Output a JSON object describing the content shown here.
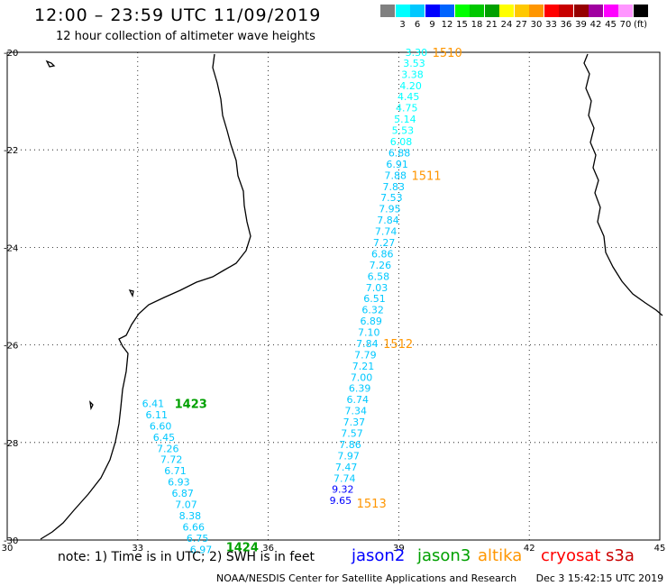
{
  "header": {
    "title": "12:00 – 23:59 UTC 11/09/2019",
    "subtitle": "12 hour collection of altimeter wave heights"
  },
  "color_scale": {
    "colors": [
      "#808080",
      "#00ffff",
      "#00c8ff",
      "#0000ff",
      "#0064ff",
      "#00ff00",
      "#00c800",
      "#00a000",
      "#ffff00",
      "#ffc800",
      "#ff9600",
      "#ff0000",
      "#c80000",
      "#960000",
      "#a000a0",
      "#ff00ff",
      "#ff96ff",
      "#000000"
    ],
    "labels": [
      "",
      "3",
      "6",
      "9",
      "12",
      "15",
      "18",
      "21",
      "24",
      "27",
      "30",
      "33",
      "36",
      "39",
      "42",
      "45",
      "70",
      "(ft)"
    ]
  },
  "map": {
    "lat_labels": [
      "-20",
      "-22",
      "-24",
      "-26",
      "-28",
      "-30"
    ],
    "lon_labels": [
      "30",
      "33",
      "36",
      "39",
      "42",
      "45"
    ],
    "lat_values": [
      -20,
      -22,
      -24,
      -26,
      -28,
      -30
    ],
    "lon_values": [
      30,
      33,
      36,
      39,
      42,
      45
    ],
    "tracks": [
      {
        "satellite": "altika",
        "time_label": "1510",
        "time_label_2": "1511",
        "time_label_3": "1512",
        "time_label_4": "1513",
        "points": [
          {
            "lat": -20.0,
            "lon": 39.15,
            "value": "3.30",
            "color": "#00ffff"
          },
          {
            "lat": -20.22,
            "lon": 39.1,
            "value": "3.53",
            "color": "#00ffff"
          },
          {
            "lat": -20.45,
            "lon": 39.06,
            "value": "3.38",
            "color": "#00ffff"
          },
          {
            "lat": -20.68,
            "lon": 39.02,
            "value": "4.20",
            "color": "#00ffff"
          },
          {
            "lat": -20.91,
            "lon": 38.97,
            "value": "4.45",
            "color": "#00ffff"
          },
          {
            "lat": -21.14,
            "lon": 38.93,
            "value": "4.75",
            "color": "#00ffff"
          },
          {
            "lat": -21.37,
            "lon": 38.89,
            "value": "5.14",
            "color": "#00ffff"
          },
          {
            "lat": -21.6,
            "lon": 38.84,
            "value": "5.53",
            "color": "#00ffff"
          },
          {
            "lat": -21.83,
            "lon": 38.8,
            "value": "6.08",
            "color": "#00ffff"
          },
          {
            "lat": -22.06,
            "lon": 38.76,
            "value": "6.88",
            "color": "#00c8ff"
          },
          {
            "lat": -22.29,
            "lon": 38.71,
            "value": "6.91",
            "color": "#00c8ff"
          },
          {
            "lat": -22.52,
            "lon": 38.67,
            "value": "7.88",
            "color": "#00c8ff"
          },
          {
            "lat": -22.75,
            "lon": 38.63,
            "value": "7.83",
            "color": "#00c8ff"
          },
          {
            "lat": -22.98,
            "lon": 38.58,
            "value": "7.53",
            "color": "#00c8ff"
          },
          {
            "lat": -23.21,
            "lon": 38.54,
            "value": "7.95",
            "color": "#00c8ff"
          },
          {
            "lat": -23.44,
            "lon": 38.5,
            "value": "7.84",
            "color": "#00c8ff"
          },
          {
            "lat": -23.67,
            "lon": 38.45,
            "value": "7.74",
            "color": "#00c8ff"
          },
          {
            "lat": -23.9,
            "lon": 38.41,
            "value": "7.27",
            "color": "#00c8ff"
          },
          {
            "lat": -24.13,
            "lon": 38.37,
            "value": "6.86",
            "color": "#00c8ff"
          },
          {
            "lat": -24.36,
            "lon": 38.32,
            "value": "7.26",
            "color": "#00c8ff"
          },
          {
            "lat": -24.59,
            "lon": 38.28,
            "value": "6.58",
            "color": "#00c8ff"
          },
          {
            "lat": -24.82,
            "lon": 38.24,
            "value": "7.03",
            "color": "#00c8ff"
          },
          {
            "lat": -25.05,
            "lon": 38.19,
            "value": "6.51",
            "color": "#00c8ff"
          },
          {
            "lat": -25.28,
            "lon": 38.15,
            "value": "6.32",
            "color": "#00c8ff"
          },
          {
            "lat": -25.51,
            "lon": 38.11,
            "value": "6.89",
            "color": "#00c8ff"
          },
          {
            "lat": -25.74,
            "lon": 38.06,
            "value": "7.10",
            "color": "#00c8ff"
          },
          {
            "lat": -25.97,
            "lon": 38.02,
            "value": "7.84",
            "color": "#00c8ff"
          },
          {
            "lat": -26.2,
            "lon": 37.98,
            "value": "7.79",
            "color": "#00c8ff"
          },
          {
            "lat": -26.43,
            "lon": 37.93,
            "value": "7.21",
            "color": "#00c8ff"
          },
          {
            "lat": -26.66,
            "lon": 37.89,
            "value": "7.00",
            "color": "#00c8ff"
          },
          {
            "lat": -26.89,
            "lon": 37.85,
            "value": "6.39",
            "color": "#00c8ff"
          },
          {
            "lat": -27.12,
            "lon": 37.8,
            "value": "6.74",
            "color": "#00c8ff"
          },
          {
            "lat": -27.35,
            "lon": 37.76,
            "value": "7.34",
            "color": "#00c8ff"
          },
          {
            "lat": -27.58,
            "lon": 37.72,
            "value": "7.37",
            "color": "#00c8ff"
          },
          {
            "lat": -27.81,
            "lon": 37.67,
            "value": "7.57",
            "color": "#00c8ff"
          },
          {
            "lat": -28.04,
            "lon": 37.63,
            "value": "7.86",
            "color": "#00c8ff"
          },
          {
            "lat": -28.27,
            "lon": 37.59,
            "value": "7.97",
            "color": "#00c8ff"
          },
          {
            "lat": -28.5,
            "lon": 37.54,
            "value": "7.47",
            "color": "#00c8ff"
          },
          {
            "lat": -28.73,
            "lon": 37.5,
            "value": "7.74",
            "color": "#00c8ff"
          },
          {
            "lat": -28.96,
            "lon": 37.46,
            "value": "9.32",
            "color": "#0000ff"
          },
          {
            "lat": -29.19,
            "lon": 37.41,
            "value": "9.65",
            "color": "#0000ff"
          }
        ]
      },
      {
        "satellite": "jason3",
        "time_label": "1423",
        "time_label_2": "1424",
        "points": [
          {
            "lat": -27.2,
            "lon": 33.1,
            "value": "6.41",
            "color": "#00c8ff"
          },
          {
            "lat": -27.43,
            "lon": 33.18,
            "value": "6.11",
            "color": "#00c8ff"
          },
          {
            "lat": -27.66,
            "lon": 33.27,
            "value": "6.60",
            "color": "#00c8ff"
          },
          {
            "lat": -27.89,
            "lon": 33.35,
            "value": "6.45",
            "color": "#00c8ff"
          },
          {
            "lat": -28.12,
            "lon": 33.44,
            "value": "7.26",
            "color": "#00c8ff"
          },
          {
            "lat": -28.35,
            "lon": 33.52,
            "value": "7.72",
            "color": "#00c8ff"
          },
          {
            "lat": -28.58,
            "lon": 33.61,
            "value": "6.71",
            "color": "#00c8ff"
          },
          {
            "lat": -28.81,
            "lon": 33.69,
            "value": "6.93",
            "color": "#00c8ff"
          },
          {
            "lat": -29.04,
            "lon": 33.78,
            "value": "6.87",
            "color": "#00c8ff"
          },
          {
            "lat": -29.27,
            "lon": 33.86,
            "value": "7.07",
            "color": "#00c8ff"
          },
          {
            "lat": -29.5,
            "lon": 33.95,
            "value": "8.38",
            "color": "#00c8ff"
          },
          {
            "lat": -29.73,
            "lon": 34.03,
            "value": "6.66",
            "color": "#00c8ff"
          },
          {
            "lat": -29.96,
            "lon": 34.12,
            "value": "6.75",
            "color": "#00c8ff"
          },
          {
            "lat": -30.19,
            "lon": 34.2,
            "value": "6.97",
            "color": "#00c8ff"
          }
        ]
      }
    ]
  },
  "note": "note:  1) Time is in UTC; 2) SWH is in feet",
  "legend": [
    {
      "label": "jason2",
      "color": "#0000ff"
    },
    {
      "label": "jason3",
      "color": "#00a000"
    },
    {
      "label": "altika",
      "color": "#ff9600"
    },
    {
      "label": "cryosat",
      "color": "#ff0000"
    },
    {
      "label": "s3a",
      "color": "#c80000"
    }
  ],
  "footer": {
    "org": "NOAA/NESDIS Center for Satellite Applications and Research",
    "timestamp": "Dec  3 15:42:15 UTC 2019"
  }
}
